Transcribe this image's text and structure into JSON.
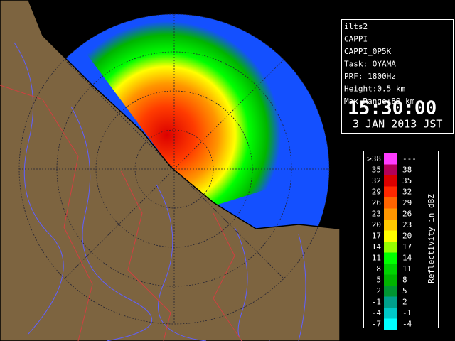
{
  "info": {
    "lines": [
      "ilts2",
      "CAPPI",
      "CAPPI_0P5K",
      "Task: OYAMA",
      "PRF: 1800Hz",
      "Height:0.5 km",
      "Max Range:80 km"
    ],
    "time": "15:30:00",
    "date": "3 JAN 2013 JST"
  },
  "legend": {
    "title": "Reflectivity in dBZ",
    "rows": [
      {
        "low": ">38",
        "high": "---",
        "color": "#ff3cff"
      },
      {
        "low": "35",
        "high": "38",
        "color": "#b4005a"
      },
      {
        "low": "32",
        "high": "35",
        "color": "#dc0000"
      },
      {
        "low": "29",
        "high": "32",
        "color": "#ff2800"
      },
      {
        "low": "26",
        "high": "29",
        "color": "#ff6400"
      },
      {
        "low": "23",
        "high": "26",
        "color": "#ff9600"
      },
      {
        "low": "20",
        "high": "23",
        "color": "#ffc800"
      },
      {
        "low": "17",
        "high": "20",
        "color": "#ffff00"
      },
      {
        "low": "14",
        "high": "17",
        "color": "#96ff00"
      },
      {
        "low": "11",
        "high": "14",
        "color": "#00ff00"
      },
      {
        "low": "8",
        "high": "11",
        "color": "#00d200"
      },
      {
        "low": "5",
        "high": "8",
        "color": "#00b400"
      },
      {
        "low": "2",
        "high": "5",
        "color": "#009632"
      },
      {
        "low": "-1",
        "high": "2",
        "color": "#00a08c"
      },
      {
        "low": "-4",
        "high": "-1",
        "color": "#00c8c8"
      },
      {
        "low": "-7",
        "high": "-4",
        "color": "#00ffff"
      }
    ]
  }
}
